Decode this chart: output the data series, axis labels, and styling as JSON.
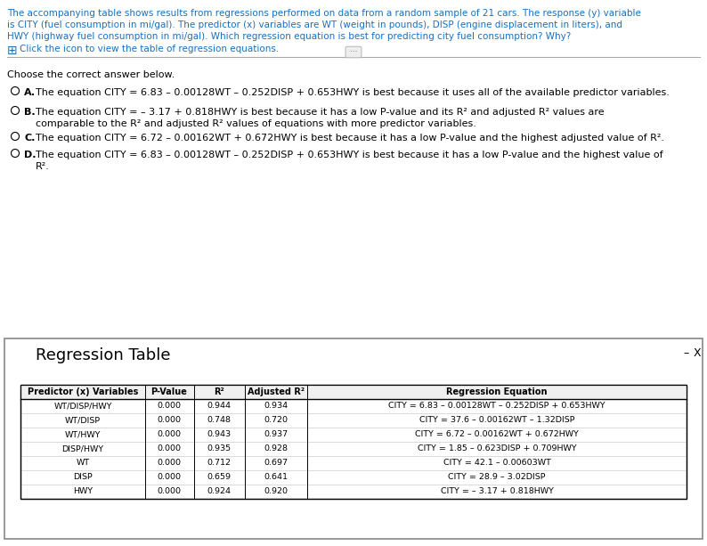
{
  "question_lines": [
    "The accompanying table shows results from regressions performed on data from a random sample of 21 cars. The response (y) variable",
    "is CITY (fuel consumption in mi/gal). The predictor (x) variables are WT (weight in pounds), DISP (engine displacement in liters), and",
    "HWY (highway fuel consumption in mi/gal). Which regression equation is best for predicting city fuel consumption? Why?"
  ],
  "icon_text": "Click the icon to view the table of regression equations.",
  "prompt": "Choose the correct answer below.",
  "option_A_label": "A.",
  "option_A_text": "The equation CITY = 6.83 – 0.00128WT – 0.252DISP + 0.653HWY is best because it uses all of the available predictor variables.",
  "option_B_label": "B.",
  "option_B_lines": [
    "The equation CITY = – 3.17 + 0.818HWY is best because it has a low P-value and its R² and adjusted R² values are",
    "comparable to the R² and adjusted R² values of equations with more predictor variables."
  ],
  "option_C_label": "C.",
  "option_C_text": "The equation CITY = 6.72 – 0.00162WT + 0.672HWY is best because it has a low P-value and the highest adjusted value of R².",
  "option_D_label": "D.",
  "option_D_lines": [
    "The equation CITY = 6.83 – 0.00128WT – 0.252DISP + 0.653HWY is best because it has a low P-value and the highest value of",
    "R²."
  ],
  "regression_table_title": "Regression Table",
  "table_headers": [
    "Predictor (x) Variables",
    "P-Value",
    "R²",
    "Adjusted R²",
    "Regression Equation"
  ],
  "table_rows": [
    [
      "WT/DISP/HWY",
      "0.000",
      "0.944",
      "0.934",
      "CITY = 6.83 – 0.00128WT – 0.252DISP + 0.653HWY"
    ],
    [
      "WT/DISP",
      "0.000",
      "0.748",
      "0.720",
      "CITY = 37.6 – 0.00162WT – 1.32DISP"
    ],
    [
      "WT/HWY",
      "0.000",
      "0.943",
      "0.937",
      "CITY = 6.72 – 0.00162WT + 0.672HWY"
    ],
    [
      "DISP/HWY",
      "0.000",
      "0.935",
      "0.928",
      "CITY = 1.85 – 0.623DISP + 0.709HWY"
    ],
    [
      "WT",
      "0.000",
      "0.712",
      "0.697",
      "CITY = 42.1 – 0.00603WT"
    ],
    [
      "DISP",
      "0.000",
      "0.659",
      "0.641",
      "CITY = 28.9 – 3.02DISP"
    ],
    [
      "HWY",
      "0.000",
      "0.924",
      "0.920",
      "CITY = – 3.17 + 0.818HWY"
    ]
  ],
  "blue": "#1a6fbd",
  "black": "#000000",
  "bg_color": "#ffffff",
  "separator_color": "#aaaaaa",
  "table_border": "#000000",
  "panel_bg": "#f5f5f5",
  "panel_border": "#888888"
}
